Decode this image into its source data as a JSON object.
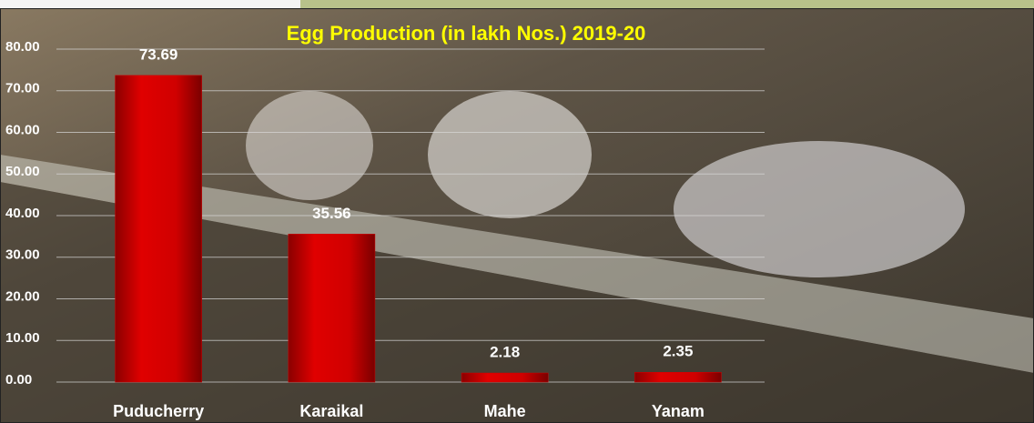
{
  "chart_data": {
    "type": "bar",
    "title": "Egg  Production (in lakh Nos.) 2019-20",
    "categories": [
      "Puducherry",
      "Karaikal",
      "Mahe",
      "Yanam"
    ],
    "values": [
      73.69,
      35.56,
      2.18,
      2.35
    ],
    "value_labels": [
      "73.69",
      "35.56",
      "2.18",
      "2.35"
    ],
    "color": "#d10000",
    "ylim": [
      0,
      80
    ],
    "yticks": [
      {
        "value": 0,
        "label": "0.00"
      },
      {
        "value": 10,
        "label": "10.00"
      },
      {
        "value": 20,
        "label": "20.00"
      },
      {
        "value": 30,
        "label": "30.00"
      },
      {
        "value": 40,
        "label": "40.00"
      },
      {
        "value": 50,
        "label": "50.00"
      },
      {
        "value": 60,
        "label": "60.00"
      },
      {
        "value": 70,
        "label": "70.00"
      },
      {
        "value": 80,
        "label": "80.00"
      }
    ],
    "grid": true
  }
}
